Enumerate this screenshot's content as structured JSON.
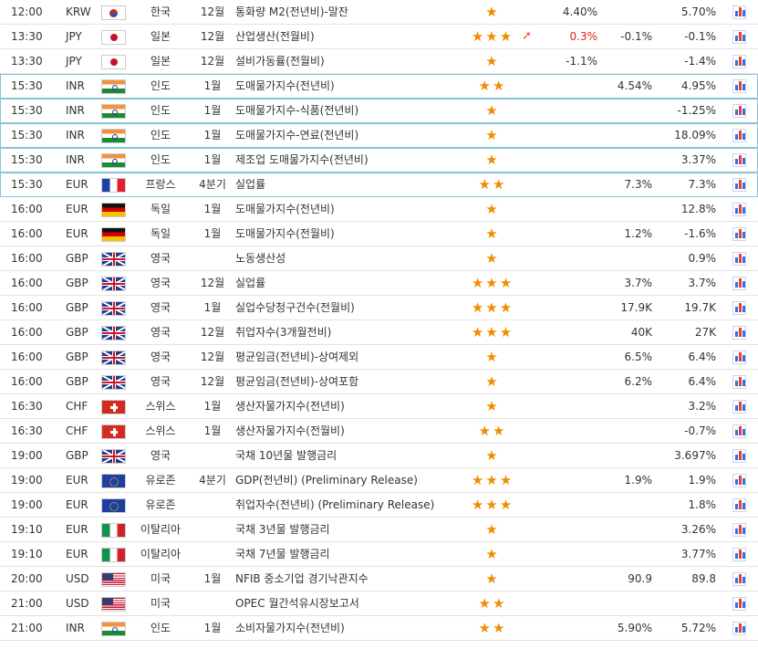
{
  "colors": {
    "star": "#f08c00",
    "up_arrow": "#ee5530",
    "actual_red": "#e02020",
    "row_highlight": "#86c5d8"
  },
  "icons": {
    "importance": "star-icon",
    "trend_up": "arrow-up-right-icon",
    "chart": "chart-icon"
  },
  "rows": [
    {
      "time": "12:00",
      "currency": "KRW",
      "flag": "kr",
      "country": "한국",
      "period": "12월",
      "event": "통화량 M2(전년비)-말잔",
      "stars": "★",
      "arrow": "",
      "actual": "4.40%",
      "actual_red": false,
      "forecast": "",
      "previous": "5.70%",
      "highlight": false
    },
    {
      "time": "13:30",
      "currency": "JPY",
      "flag": "jp",
      "country": "일본",
      "period": "12월",
      "event": "산업생산(전월비)",
      "stars": "★★★",
      "arrow": "➚",
      "actual": "0.3%",
      "actual_red": true,
      "forecast": "-0.1%",
      "previous": "-0.1%",
      "highlight": false
    },
    {
      "time": "13:30",
      "currency": "JPY",
      "flag": "jp",
      "country": "일본",
      "period": "12월",
      "event": "설비가동률(전월비)",
      "stars": "★",
      "arrow": "",
      "actual": "-1.1%",
      "actual_red": false,
      "forecast": "",
      "previous": "-1.4%",
      "highlight": false
    },
    {
      "time": "15:30",
      "currency": "INR",
      "flag": "in",
      "country": "인도",
      "period": "1월",
      "event": "도매물가지수(전년비)",
      "stars": "★★",
      "arrow": "",
      "actual": "",
      "actual_red": false,
      "forecast": "4.54%",
      "previous": "4.95%",
      "highlight": true
    },
    {
      "time": "15:30",
      "currency": "INR",
      "flag": "in",
      "country": "인도",
      "period": "1월",
      "event": "도매물가지수-식품(전년비)",
      "stars": "★",
      "arrow": "",
      "actual": "",
      "actual_red": false,
      "forecast": "",
      "previous": "-1.25%",
      "highlight": true
    },
    {
      "time": "15:30",
      "currency": "INR",
      "flag": "in",
      "country": "인도",
      "period": "1월",
      "event": "도매물가지수-연료(전년비)",
      "stars": "★",
      "arrow": "",
      "actual": "",
      "actual_red": false,
      "forecast": "",
      "previous": "18.09%",
      "highlight": true
    },
    {
      "time": "15:30",
      "currency": "INR",
      "flag": "in",
      "country": "인도",
      "period": "1월",
      "event": "제조업 도매물가지수(전년비)",
      "stars": "★",
      "arrow": "",
      "actual": "",
      "actual_red": false,
      "forecast": "",
      "previous": "3.37%",
      "highlight": true
    },
    {
      "time": "15:30",
      "currency": "EUR",
      "flag": "fr",
      "country": "프랑스",
      "period": "4분기",
      "event": "실업률",
      "stars": "★★",
      "arrow": "",
      "actual": "",
      "actual_red": false,
      "forecast": "7.3%",
      "previous": "7.3%",
      "highlight": true
    },
    {
      "time": "16:00",
      "currency": "EUR",
      "flag": "de",
      "country": "독일",
      "period": "1월",
      "event": "도매물가지수(전년비)",
      "stars": "★",
      "arrow": "",
      "actual": "",
      "actual_red": false,
      "forecast": "",
      "previous": "12.8%",
      "highlight": false
    },
    {
      "time": "16:00",
      "currency": "EUR",
      "flag": "de",
      "country": "독일",
      "period": "1월",
      "event": "도매물가지수(전월비)",
      "stars": "★",
      "arrow": "",
      "actual": "",
      "actual_red": false,
      "forecast": "1.2%",
      "previous": "-1.6%",
      "highlight": false
    },
    {
      "time": "16:00",
      "currency": "GBP",
      "flag": "gb",
      "country": "영국",
      "period": "",
      "event": "노동생산성",
      "stars": "★",
      "arrow": "",
      "actual": "",
      "actual_red": false,
      "forecast": "",
      "previous": "0.9%",
      "highlight": false
    },
    {
      "time": "16:00",
      "currency": "GBP",
      "flag": "gb",
      "country": "영국",
      "period": "12월",
      "event": "실업률",
      "stars": "★★★",
      "arrow": "",
      "actual": "",
      "actual_red": false,
      "forecast": "3.7%",
      "previous": "3.7%",
      "highlight": false
    },
    {
      "time": "16:00",
      "currency": "GBP",
      "flag": "gb",
      "country": "영국",
      "period": "1월",
      "event": "실업수당청구건수(전월비)",
      "stars": "★★★",
      "arrow": "",
      "actual": "",
      "actual_red": false,
      "forecast": "17.9K",
      "previous": "19.7K",
      "highlight": false
    },
    {
      "time": "16:00",
      "currency": "GBP",
      "flag": "gb",
      "country": "영국",
      "period": "12월",
      "event": "취업자수(3개월전비)",
      "stars": "★★★",
      "arrow": "",
      "actual": "",
      "actual_red": false,
      "forecast": "40K",
      "previous": "27K",
      "highlight": false
    },
    {
      "time": "16:00",
      "currency": "GBP",
      "flag": "gb",
      "country": "영국",
      "period": "12월",
      "event": "평균임금(전년비)-상여제외",
      "stars": "★",
      "arrow": "",
      "actual": "",
      "actual_red": false,
      "forecast": "6.5%",
      "previous": "6.4%",
      "highlight": false
    },
    {
      "time": "16:00",
      "currency": "GBP",
      "flag": "gb",
      "country": "영국",
      "period": "12월",
      "event": "평균임금(전년비)-상여포함",
      "stars": "★",
      "arrow": "",
      "actual": "",
      "actual_red": false,
      "forecast": "6.2%",
      "previous": "6.4%",
      "highlight": false
    },
    {
      "time": "16:30",
      "currency": "CHF",
      "flag": "ch",
      "country": "스위스",
      "period": "1월",
      "event": "생산자물가지수(전년비)",
      "stars": "★",
      "arrow": "",
      "actual": "",
      "actual_red": false,
      "forecast": "",
      "previous": "3.2%",
      "highlight": false
    },
    {
      "time": "16:30",
      "currency": "CHF",
      "flag": "ch",
      "country": "스위스",
      "period": "1월",
      "event": "생산자물가지수(전월비)",
      "stars": "★★",
      "arrow": "",
      "actual": "",
      "actual_red": false,
      "forecast": "",
      "previous": "-0.7%",
      "highlight": false
    },
    {
      "time": "19:00",
      "currency": "GBP",
      "flag": "gb",
      "country": "영국",
      "period": "",
      "event": "국채 10년물 발행금리",
      "stars": "★",
      "arrow": "",
      "actual": "",
      "actual_red": false,
      "forecast": "",
      "previous": "3.697%",
      "highlight": false
    },
    {
      "time": "19:00",
      "currency": "EUR",
      "flag": "eu",
      "country": "유로존",
      "period": "4분기",
      "event": "GDP(전년비) (Preliminary Release)",
      "stars": "★★★",
      "arrow": "",
      "actual": "",
      "actual_red": false,
      "forecast": "1.9%",
      "previous": "1.9%",
      "highlight": false
    },
    {
      "time": "19:00",
      "currency": "EUR",
      "flag": "eu",
      "country": "유로존",
      "period": "",
      "event": "취업자수(전년비) (Preliminary Release)",
      "stars": "★★★",
      "arrow": "",
      "actual": "",
      "actual_red": false,
      "forecast": "",
      "previous": "1.8%",
      "highlight": false
    },
    {
      "time": "19:10",
      "currency": "EUR",
      "flag": "it",
      "country": "이탈리아",
      "period": "",
      "event": "국채 3년물 발행금리",
      "stars": "★",
      "arrow": "",
      "actual": "",
      "actual_red": false,
      "forecast": "",
      "previous": "3.26%",
      "highlight": false
    },
    {
      "time": "19:10",
      "currency": "EUR",
      "flag": "it",
      "country": "이탈리아",
      "period": "",
      "event": "국채 7년물 발행금리",
      "stars": "★",
      "arrow": "",
      "actual": "",
      "actual_red": false,
      "forecast": "",
      "previous": "3.77%",
      "highlight": false
    },
    {
      "time": "20:00",
      "currency": "USD",
      "flag": "us",
      "country": "미국",
      "period": "1월",
      "event": "NFIB 중소기업 경기낙관지수",
      "stars": "★",
      "arrow": "",
      "actual": "",
      "actual_red": false,
      "forecast": "90.9",
      "previous": "89.8",
      "highlight": false
    },
    {
      "time": "21:00",
      "currency": "USD",
      "flag": "us",
      "country": "미국",
      "period": "",
      "event": "OPEC 월간석유시장보고서",
      "stars": "★★",
      "arrow": "",
      "actual": "",
      "actual_red": false,
      "forecast": "",
      "previous": "",
      "highlight": false
    },
    {
      "time": "21:00",
      "currency": "INR",
      "flag": "in",
      "country": "인도",
      "period": "1월",
      "event": "소비자물가지수(전년비)",
      "stars": "★★",
      "arrow": "",
      "actual": "",
      "actual_red": false,
      "forecast": "5.90%",
      "previous": "5.72%",
      "highlight": false
    }
  ]
}
